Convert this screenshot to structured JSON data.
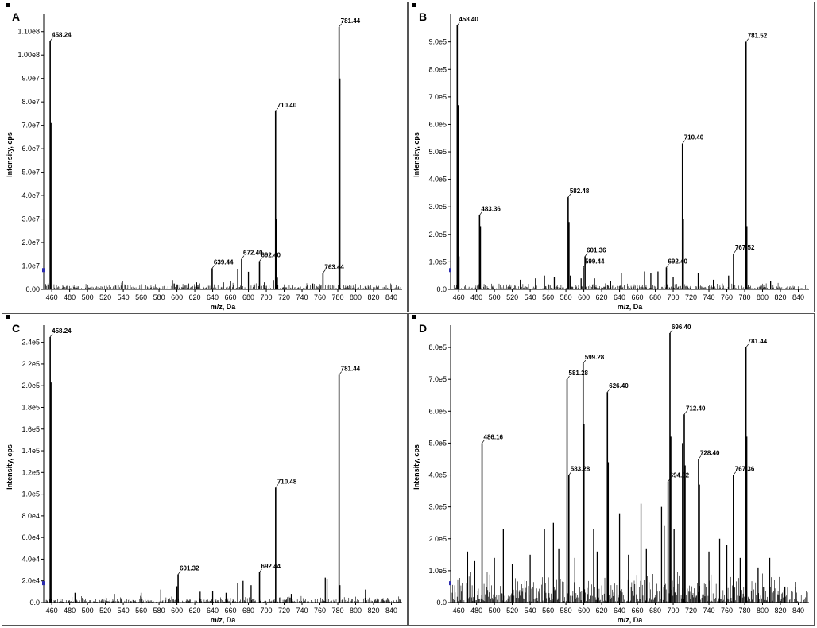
{
  "chart_data": [
    {
      "id": "A",
      "type": "bar",
      "panel_label": "A",
      "xlabel": "m/z, Da",
      "ylabel": "Intensity, cps",
      "xlim": [
        451,
        852
      ],
      "ylim": [
        0,
        115000000.0
      ],
      "xticks": [
        460,
        480,
        500,
        520,
        540,
        560,
        580,
        600,
        620,
        640,
        660,
        680,
        700,
        720,
        740,
        760,
        780,
        800,
        820,
        840
      ],
      "yticks": [
        0,
        10000000.0,
        20000000.0,
        30000000.0,
        40000000.0,
        50000000.0,
        60000000.0,
        70000000.0,
        80000000.0,
        90000000.0,
        100000000.0,
        110000000.0
      ],
      "ytick_labels": [
        "0.00",
        "1.0e7",
        "2.0e7",
        "3.0e7",
        "4.0e7",
        "5.0e7",
        "6.0e7",
        "7.0e7",
        "8.0e7",
        "9.0e7",
        "1.00e8",
        "1.10e8"
      ],
      "peaks": [
        {
          "x": 458.24,
          "y": 106000000.0,
          "label": "458.24"
        },
        {
          "x": 781.44,
          "y": 112000000.0,
          "label": "781.44"
        },
        {
          "x": 710.4,
          "y": 76000000.0,
          "label": "710.40"
        },
        {
          "x": 639.44,
          "y": 9000000.0,
          "label": "639.44"
        },
        {
          "x": 672.4,
          "y": 13000000.0,
          "label": "672.40"
        },
        {
          "x": 692.4,
          "y": 12000000.0,
          "label": "692.40"
        },
        {
          "x": 763.44,
          "y": 7000000.0,
          "label": "763.44"
        },
        {
          "x": 711.4,
          "y": 30000000.0
        },
        {
          "x": 712.4,
          "y": 5000000.0
        },
        {
          "x": 539,
          "y": 3500000.0
        },
        {
          "x": 595,
          "y": 4000000.0
        },
        {
          "x": 597,
          "y": 2500000.0
        },
        {
          "x": 613,
          "y": 2500000.0
        },
        {
          "x": 622,
          "y": 3000000.0
        },
        {
          "x": 652,
          "y": 3000000.0
        },
        {
          "x": 660,
          "y": 3500000.0
        },
        {
          "x": 668,
          "y": 8500000.0
        },
        {
          "x": 680,
          "y": 7500000.0
        },
        {
          "x": 698,
          "y": 3000000.0
        },
        {
          "x": 708,
          "y": 4000000.0
        },
        {
          "x": 752,
          "y": 2500000.0
        },
        {
          "x": 782.4,
          "y": 90000000.0
        },
        {
          "x": 456,
          "y": 2500000.0
        },
        {
          "x": 459.2,
          "y": 71000000.0
        }
      ]
    },
    {
      "id": "B",
      "type": "bar",
      "panel_label": "B",
      "xlabel": "m/z, Da",
      "ylabel": "Intensity, cps",
      "xlim": [
        451,
        852
      ],
      "ylim": [
        0,
        980000.0
      ],
      "xticks": [
        460,
        480,
        500,
        520,
        540,
        560,
        580,
        600,
        620,
        640,
        660,
        680,
        700,
        720,
        740,
        760,
        780,
        800,
        820,
        840
      ],
      "yticks": [
        0,
        100000.0,
        200000.0,
        300000.0,
        400000.0,
        500000.0,
        600000.0,
        700000.0,
        800000.0,
        900000.0
      ],
      "ytick_labels": [
        "0.0",
        "1.0e5",
        "2.0e5",
        "3.0e5",
        "4.0e5",
        "5.0e5",
        "6.0e5",
        "7.0e5",
        "8.0e5",
        "9.0e5"
      ],
      "peaks": [
        {
          "x": 458.4,
          "y": 960000.0,
          "label": "458.40"
        },
        {
          "x": 781.52,
          "y": 900000.0,
          "label": "781.52"
        },
        {
          "x": 710.4,
          "y": 530000.0,
          "label": "710.40"
        },
        {
          "x": 483.36,
          "y": 270000.0,
          "label": "483.36"
        },
        {
          "x": 582.48,
          "y": 335000.0,
          "label": "582.48"
        },
        {
          "x": 599.44,
          "y": 80000.0,
          "label": "599.44"
        },
        {
          "x": 601.36,
          "y": 120000.0,
          "label": "601.36"
        },
        {
          "x": 692.4,
          "y": 80000.0,
          "label": "692.40"
        },
        {
          "x": 767.52,
          "y": 130000.0,
          "label": "767.52"
        },
        {
          "x": 459.4,
          "y": 670000.0
        },
        {
          "x": 460.4,
          "y": 120000.0
        },
        {
          "x": 484.4,
          "y": 230000.0
        },
        {
          "x": 583.5,
          "y": 245000.0
        },
        {
          "x": 711.4,
          "y": 255000.0
        },
        {
          "x": 782.5,
          "y": 230000.0
        },
        {
          "x": 585,
          "y": 50000.0
        },
        {
          "x": 597,
          "y": 40000.0
        },
        {
          "x": 567,
          "y": 45000.0
        },
        {
          "x": 529,
          "y": 35000.0
        },
        {
          "x": 546,
          "y": 40000.0
        },
        {
          "x": 556,
          "y": 50000.0
        },
        {
          "x": 612,
          "y": 40000.0
        },
        {
          "x": 630,
          "y": 30000.0
        },
        {
          "x": 642,
          "y": 60000.0
        },
        {
          "x": 668,
          "y": 65000.0
        },
        {
          "x": 675,
          "y": 60000.0
        },
        {
          "x": 683,
          "y": 65000.0
        },
        {
          "x": 700,
          "y": 45000.0
        },
        {
          "x": 728,
          "y": 60000.0
        },
        {
          "x": 745,
          "y": 35000.0
        },
        {
          "x": 762,
          "y": 50000.0
        },
        {
          "x": 809,
          "y": 30000.0
        }
      ]
    },
    {
      "id": "C",
      "type": "bar",
      "panel_label": "C",
      "xlabel": "m/z, Da",
      "ylabel": "Intensity, cps",
      "xlim": [
        451,
        852
      ],
      "ylim": [
        0,
        250000.0
      ],
      "xticks": [
        460,
        480,
        500,
        520,
        540,
        560,
        580,
        600,
        620,
        640,
        660,
        680,
        700,
        720,
        740,
        760,
        780,
        800,
        820,
        840
      ],
      "yticks": [
        0,
        20000.0,
        40000.0,
        60000.0,
        80000.0,
        100000.0,
        120000.0,
        140000.0,
        160000.0,
        180000.0,
        200000.0,
        220000.0,
        240000.0
      ],
      "ytick_labels": [
        "0.0",
        "2.0e4",
        "4.0e4",
        "6.0e4",
        "8.0e4",
        "1.0e5",
        "1.2e5",
        "1.4e5",
        "1.6e5",
        "1.8e5",
        "2.0e5",
        "2.2e5",
        "2.4e5"
      ],
      "peaks": [
        {
          "x": 458.24,
          "y": 245000.0,
          "label": "458.24"
        },
        {
          "x": 781.44,
          "y": 210000.0,
          "label": "781.44"
        },
        {
          "x": 710.48,
          "y": 106000.0,
          "label": "710.48"
        },
        {
          "x": 601.32,
          "y": 26000.0,
          "label": "601.32"
        },
        {
          "x": 692.44,
          "y": 28000.0,
          "label": "692.44"
        },
        {
          "x": 459.2,
          "y": 203000.0
        },
        {
          "x": 766,
          "y": 23000.0
        },
        {
          "x": 768,
          "y": 22000.0
        },
        {
          "x": 782.4,
          "y": 16000.0
        },
        {
          "x": 811,
          "y": 12000.0
        },
        {
          "x": 486,
          "y": 9000.0
        },
        {
          "x": 582,
          "y": 12000.0
        },
        {
          "x": 600,
          "y": 15000.0
        },
        {
          "x": 640,
          "y": 11000.0
        },
        {
          "x": 668,
          "y": 18000.0
        },
        {
          "x": 674,
          "y": 20000.0
        },
        {
          "x": 683,
          "y": 16000.0
        },
        {
          "x": 530,
          "y": 8000.0
        },
        {
          "x": 560,
          "y": 9000.0
        },
        {
          "x": 626,
          "y": 10000.0
        },
        {
          "x": 655,
          "y": 9000.0
        },
        {
          "x": 728,
          "y": 8000.0
        }
      ]
    },
    {
      "id": "D",
      "type": "bar",
      "panel_label": "D",
      "xlabel": "m/z, Da",
      "ylabel": "Intensity, cps",
      "xlim": [
        451,
        852
      ],
      "ylim": [
        0,
        850000.0
      ],
      "xticks": [
        460,
        480,
        500,
        520,
        540,
        560,
        580,
        600,
        620,
        640,
        660,
        680,
        700,
        720,
        740,
        760,
        780,
        800,
        820,
        840
      ],
      "yticks": [
        0,
        100000.0,
        200000.0,
        300000.0,
        400000.0,
        500000.0,
        600000.0,
        700000.0,
        800000.0
      ],
      "ytick_labels": [
        "0.0",
        "1.0e5",
        "2.0e5",
        "3.0e5",
        "4.0e5",
        "5.0e5",
        "6.0e5",
        "7.0e5",
        "8.0e5"
      ],
      "peaks": [
        {
          "x": 696.4,
          "y": 845000.0,
          "label": "696.40"
        },
        {
          "x": 781.44,
          "y": 800000.0,
          "label": "781.44"
        },
        {
          "x": 599.28,
          "y": 750000.0,
          "label": "599.28"
        },
        {
          "x": 581.28,
          "y": 700000.0,
          "label": "581.28"
        },
        {
          "x": 626.4,
          "y": 660000.0,
          "label": "626.40"
        },
        {
          "x": 712.4,
          "y": 590000.0,
          "label": "712.40"
        },
        {
          "x": 486.16,
          "y": 500000.0,
          "label": "486.16"
        },
        {
          "x": 728.4,
          "y": 450000.0,
          "label": "728.40"
        },
        {
          "x": 583.28,
          "y": 400000.0,
          "label": "583.28"
        },
        {
          "x": 694.32,
          "y": 380000.0,
          "label": "694.32"
        },
        {
          "x": 767.36,
          "y": 400000.0,
          "label": "767.36"
        },
        {
          "x": 697.4,
          "y": 520000.0
        },
        {
          "x": 710.4,
          "y": 500000.0
        },
        {
          "x": 600.3,
          "y": 560000.0
        },
        {
          "x": 627.4,
          "y": 440000.0
        },
        {
          "x": 782.4,
          "y": 520000.0
        },
        {
          "x": 713.4,
          "y": 430000.0
        },
        {
          "x": 729.4,
          "y": 370000.0
        },
        {
          "x": 510,
          "y": 230000.0
        },
        {
          "x": 556,
          "y": 230000.0
        },
        {
          "x": 566,
          "y": 250000.0
        },
        {
          "x": 611,
          "y": 230000.0
        },
        {
          "x": 640,
          "y": 280000.0
        },
        {
          "x": 664,
          "y": 310000.0
        },
        {
          "x": 687,
          "y": 300000.0
        },
        {
          "x": 690,
          "y": 240000.0
        },
        {
          "x": 701,
          "y": 230000.0
        },
        {
          "x": 752,
          "y": 200000.0
        },
        {
          "x": 808,
          "y": 140000.0
        },
        {
          "x": 470,
          "y": 160000.0
        },
        {
          "x": 478,
          "y": 130000.0
        },
        {
          "x": 500,
          "y": 140000.0
        },
        {
          "x": 520,
          "y": 120000.0
        },
        {
          "x": 540,
          "y": 150000.0
        },
        {
          "x": 572,
          "y": 170000.0
        },
        {
          "x": 590,
          "y": 140000.0
        },
        {
          "x": 615,
          "y": 160000.0
        },
        {
          "x": 650,
          "y": 150000.0
        },
        {
          "x": 670,
          "y": 170000.0
        },
        {
          "x": 740,
          "y": 160000.0
        },
        {
          "x": 760,
          "y": 180000.0
        },
        {
          "x": 775,
          "y": 140000.0
        },
        {
          "x": 795,
          "y": 110000.0
        },
        {
          "x": 825,
          "y": 50000.0
        }
      ],
      "dense_baseline": true
    }
  ]
}
